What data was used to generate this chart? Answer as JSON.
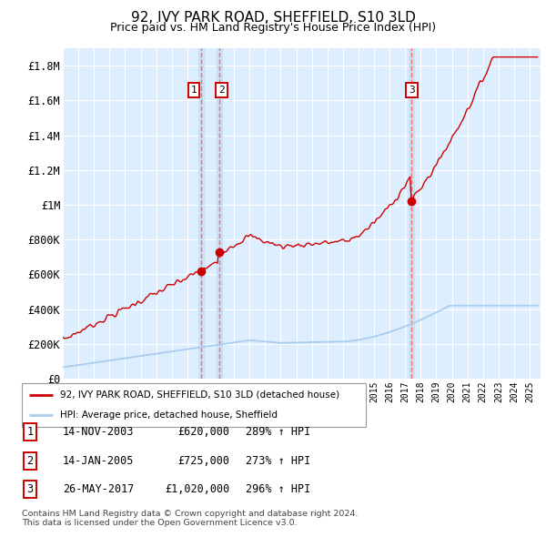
{
  "title": "92, IVY PARK ROAD, SHEFFIELD, S10 3LD",
  "subtitle": "Price paid vs. HM Land Registry's House Price Index (HPI)",
  "title_fontsize": 11,
  "subtitle_fontsize": 9,
  "background_color": "#ffffff",
  "plot_bg_color": "#ddeeff",
  "grid_color": "#ffffff",
  "red_line_color": "#cc0000",
  "blue_line_color": "#aaccee",
  "sale_marker_color": "#cc0000",
  "sale_vline_color": "#ff6666",
  "ylim": [
    0,
    1900000
  ],
  "yticks": [
    0,
    200000,
    400000,
    600000,
    800000,
    1000000,
    1200000,
    1400000,
    1600000,
    1800000
  ],
  "ytick_labels": [
    "£0",
    "£200K",
    "£400K",
    "£600K",
    "£800K",
    "£1M",
    "£1.2M",
    "£1.4M",
    "£1.6M",
    "£1.8M"
  ],
  "xlim_start": 1995.0,
  "xlim_end": 2025.7,
  "sales": [
    {
      "label": "1",
      "date": 2003.87,
      "price": 620000,
      "hpi_pct": "289%",
      "date_str": "14-NOV-2003"
    },
    {
      "label": "2",
      "date": 2005.04,
      "price": 725000,
      "hpi_pct": "273%",
      "date_str": "14-JAN-2005"
    },
    {
      "label": "3",
      "date": 2017.4,
      "price": 1020000,
      "hpi_pct": "296%",
      "date_str": "26-MAY-2017"
    }
  ],
  "legend_red_label": "92, IVY PARK ROAD, SHEFFIELD, S10 3LD (detached house)",
  "legend_blue_label": "HPI: Average price, detached house, Sheffield",
  "footer_text": "Contains HM Land Registry data © Crown copyright and database right 2024.\nThis data is licensed under the Open Government Licence v3.0."
}
